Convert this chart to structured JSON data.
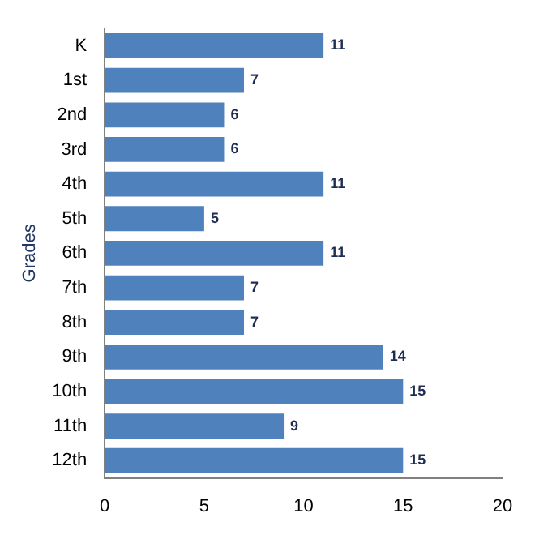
{
  "chart_data": {
    "type": "bar",
    "orientation": "horizontal",
    "ylabel": "Grades",
    "categories": [
      "K",
      "1st",
      "2nd",
      "3rd",
      "4th",
      "5th",
      "6th",
      "7th",
      "8th",
      "9th",
      "10th",
      "11th",
      "12th"
    ],
    "values": [
      11,
      7,
      6,
      6,
      11,
      5,
      11,
      7,
      7,
      14,
      15,
      9,
      15
    ],
    "color": "#4f81bd",
    "xlim": [
      0,
      20
    ],
    "xticks": [
      0,
      5,
      10,
      15,
      20
    ],
    "grid": false,
    "legend": false,
    "data_labels": true
  }
}
